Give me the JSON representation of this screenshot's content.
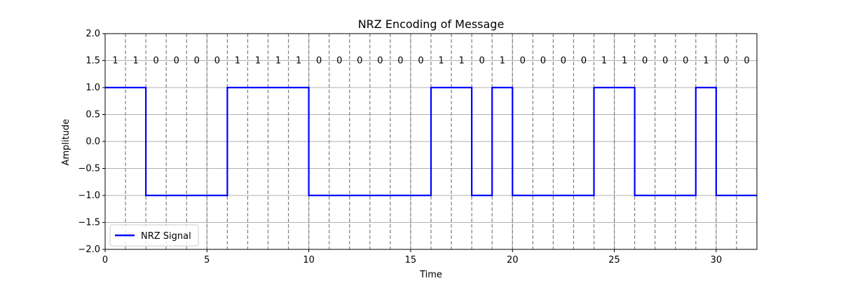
{
  "chart_data": {
    "type": "line",
    "title": "NRZ Encoding of Message",
    "xlabel": "Time",
    "ylabel": "Amplitude",
    "xlim": [
      0,
      32
    ],
    "ylim": [
      -2.0,
      2.0
    ],
    "x_ticks": [
      0,
      5,
      10,
      15,
      20,
      25,
      30
    ],
    "y_ticks": [
      -2.0,
      -1.5,
      -1.0,
      -0.5,
      0.0,
      0.5,
      1.0,
      1.5,
      2.0
    ],
    "x_tick_labels": [
      "0",
      "5",
      "10",
      "15",
      "20",
      "25",
      "30"
    ],
    "y_tick_labels": [
      "−2.0",
      "−1.5",
      "−1.0",
      "−0.5",
      "0.0",
      "0.5",
      "1.0",
      "1.5",
      "2.0"
    ],
    "grid": true,
    "legend_position": "lower-left",
    "bits": [
      "1",
      "1",
      "0",
      "0",
      "0",
      "0",
      "1",
      "1",
      "1",
      "1",
      "0",
      "0",
      "0",
      "0",
      "0",
      "0",
      "1",
      "1",
      "0",
      "1",
      "0",
      "0",
      "0",
      "0",
      "1",
      "1",
      "0",
      "0",
      "0",
      "1",
      "0",
      "0"
    ],
    "bit_label_y": 1.5,
    "bit_boundaries": [
      1,
      2,
      3,
      4,
      5,
      6,
      7,
      8,
      9,
      10,
      11,
      12,
      13,
      14,
      15,
      16,
      17,
      18,
      19,
      20,
      21,
      22,
      23,
      24,
      25,
      26,
      27,
      28,
      29,
      30,
      31
    ],
    "series": [
      {
        "name": "NRZ Signal",
        "color": "#0000ff",
        "style": "step",
        "x": [
          0,
          1,
          2,
          3,
          4,
          5,
          6,
          7,
          8,
          9,
          10,
          11,
          12,
          13,
          14,
          15,
          16,
          17,
          18,
          19,
          20,
          21,
          22,
          23,
          24,
          25,
          26,
          27,
          28,
          29,
          30,
          31,
          32
        ],
        "y": [
          1,
          1,
          -1,
          -1,
          -1,
          -1,
          1,
          1,
          1,
          1,
          -1,
          -1,
          -1,
          -1,
          -1,
          -1,
          1,
          1,
          -1,
          1,
          -1,
          -1,
          -1,
          -1,
          1,
          1,
          -1,
          -1,
          -1,
          1,
          -1,
          -1,
          -1
        ]
      }
    ],
    "colors": {
      "signal": "#0000ff",
      "grid": "#b0b0b0",
      "bit_boundary": "#808080",
      "axis": "#000000",
      "text": "#000000"
    }
  }
}
